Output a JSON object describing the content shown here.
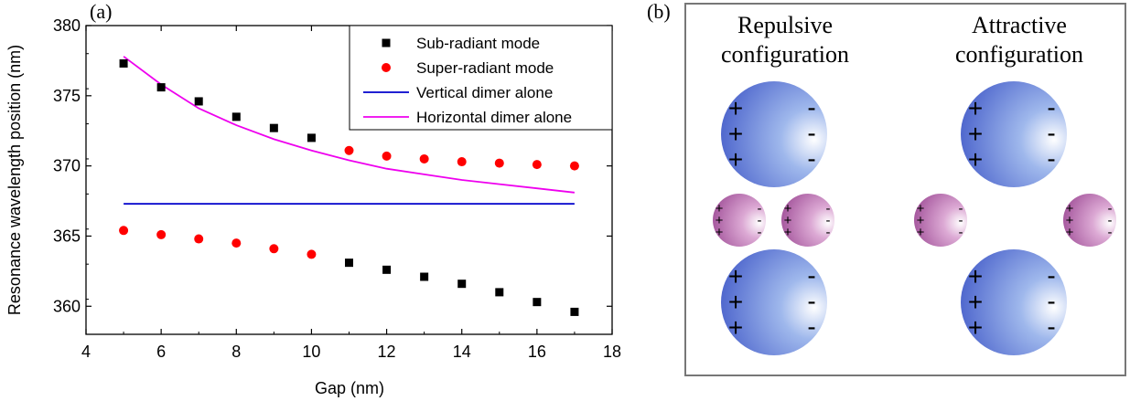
{
  "panel_a": {
    "label": "(a)"
  },
  "panel_b": {
    "label": "(b)",
    "repulsive_title": [
      "Repulsive",
      "configuration"
    ],
    "attractive_title": [
      "Attractive",
      "configuration"
    ],
    "plus_sign": "+",
    "minus_sign": "-",
    "colors": {
      "large_sphere": "#4f6fd6",
      "small_sphere": "#b45fa6",
      "frame": "#777777"
    }
  },
  "chart_data": {
    "type": "scatter",
    "xlabel": "Gap (nm)",
    "ylabel": "Resonance wavelength position (nm)",
    "xlim": [
      4,
      18
    ],
    "ylim": [
      358,
      380
    ],
    "xticks": [
      4,
      6,
      8,
      10,
      12,
      14,
      16,
      18
    ],
    "yticks": [
      360,
      365,
      370,
      375,
      380
    ],
    "legend_position": "top-right",
    "series": [
      {
        "name": "Sub-radiant mode",
        "kind": "square-marker",
        "color": "#000000",
        "x": [
          5,
          6,
          7,
          8,
          9,
          10,
          11,
          12,
          13,
          14,
          15,
          16,
          17
        ],
        "y": [
          377.3,
          375.6,
          374.6,
          373.5,
          372.7,
          372.0,
          363.1,
          362.6,
          362.1,
          361.6,
          361.0,
          360.3,
          359.6
        ]
      },
      {
        "name": "Super-radiant mode",
        "kind": "circle-marker",
        "color": "#ff0000",
        "x": [
          5,
          6,
          7,
          8,
          9,
          10,
          11,
          12,
          13,
          14,
          15,
          16,
          17
        ],
        "y": [
          365.4,
          365.1,
          364.8,
          364.5,
          364.1,
          363.7,
          371.1,
          370.7,
          370.5,
          370.3,
          370.2,
          370.1,
          370.0
        ]
      },
      {
        "name": "Vertical dimer alone",
        "kind": "line",
        "color": "#0000cc",
        "x": [
          5,
          17
        ],
        "y": [
          367.3,
          367.3
        ]
      },
      {
        "name": "Horizontal dimer alone",
        "kind": "line",
        "color": "#ee00ee",
        "x": [
          5,
          6,
          7,
          8,
          9,
          10,
          11,
          12,
          13,
          14,
          15,
          16,
          17
        ],
        "y": [
          377.8,
          375.8,
          374.1,
          372.9,
          371.9,
          371.1,
          370.4,
          369.8,
          369.4,
          369.0,
          368.7,
          368.4,
          368.1
        ]
      }
    ]
  }
}
